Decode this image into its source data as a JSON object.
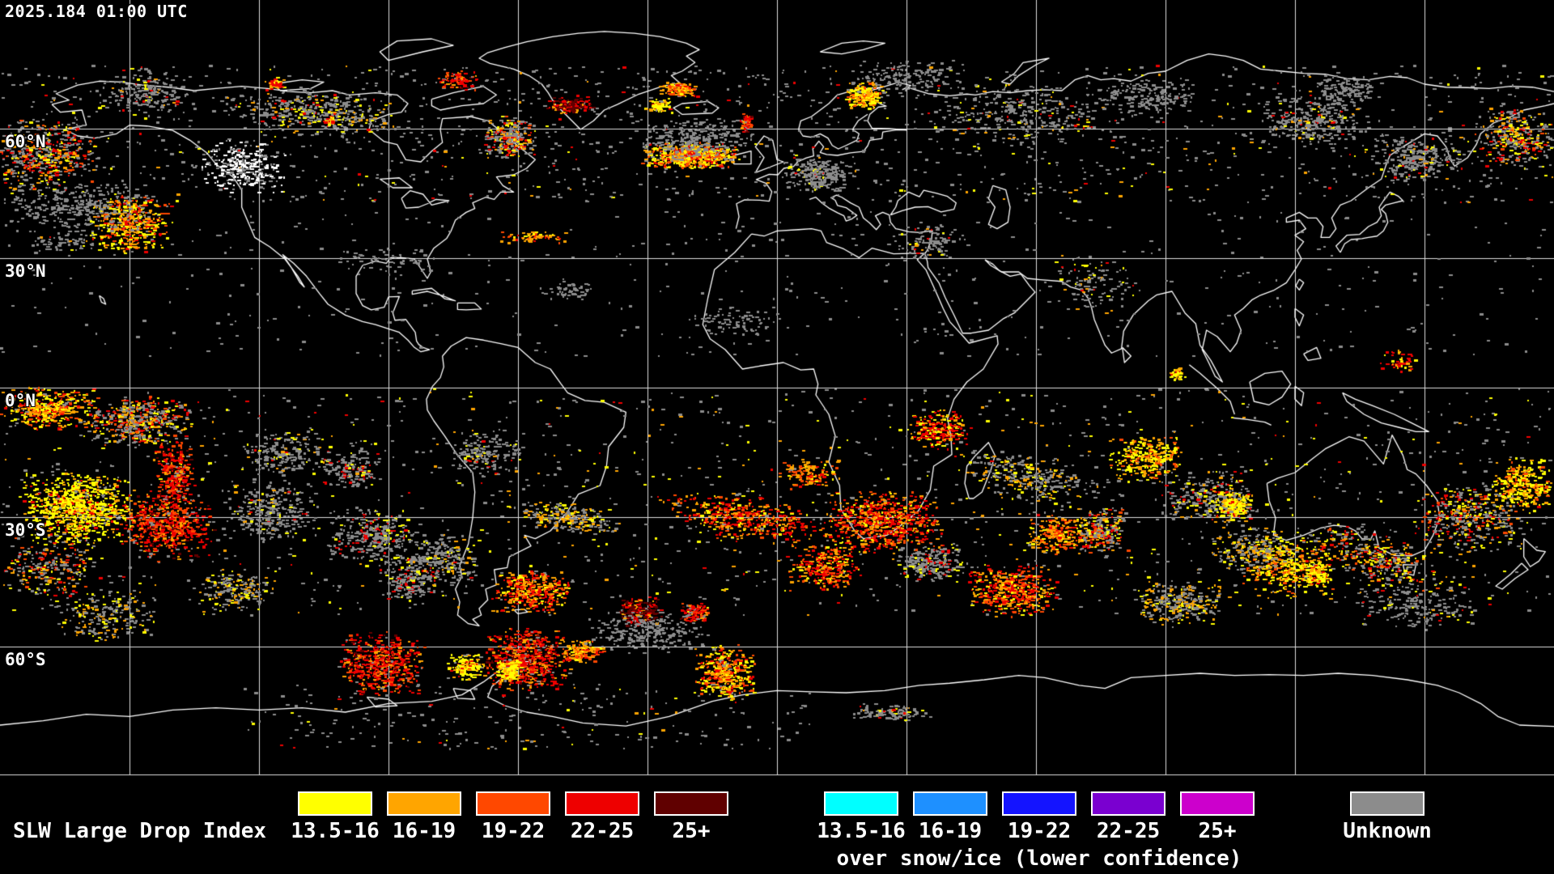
{
  "header": {
    "timestamp": "2025.184 01:00 UTC"
  },
  "latitude_labels": [
    "60°N",
    "30°N",
    "0°N",
    "30°S",
    "60°S"
  ],
  "legend": {
    "title": "SLW Large Drop Index",
    "primary": {
      "classes": [
        {
          "label": "13.5-16",
          "color": "#FFFF00"
        },
        {
          "label": "16-19",
          "color": "#FFA500"
        },
        {
          "label": "19-22",
          "color": "#FF4800"
        },
        {
          "label": "22-25",
          "color": "#EE0000"
        },
        {
          "label": "25+",
          "color": "#600000"
        }
      ]
    },
    "snow_ice": {
      "subtitle": "over snow/ice (lower confidence)",
      "classes": [
        {
          "label": "13.5-16",
          "color": "#00FFFF"
        },
        {
          "label": "16-19",
          "color": "#1E90FF"
        },
        {
          "label": "19-22",
          "color": "#1414FF"
        },
        {
          "label": "22-25",
          "color": "#7A00D0"
        },
        {
          "label": "25+",
          "color": "#CC00CC"
        }
      ]
    },
    "unknown": {
      "label": "Unknown",
      "color": "#8C8C8C"
    }
  },
  "colors": {
    "background": "#000000",
    "coastline": "#FFFFFF",
    "grid": "#DEDEDE",
    "unknown_gray": "#8C8C8C"
  }
}
